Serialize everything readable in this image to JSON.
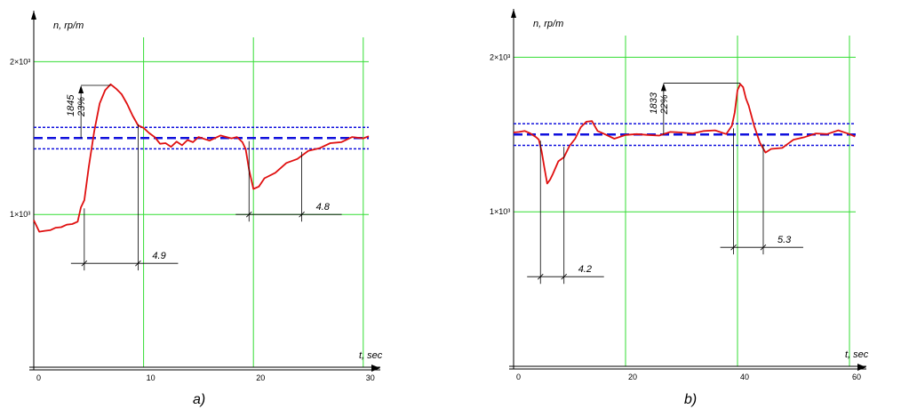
{
  "colors": {
    "grid": "#33dd33",
    "series": "#e01010",
    "band": "#1010dd",
    "axis": "#000000"
  },
  "chart_data": [
    {
      "type": "line",
      "panel_label": "a)",
      "xlabel": "t, sec",
      "ylabel": "n, rp/m",
      "xlim": [
        0,
        31
      ],
      "ylim": [
        0,
        2200
      ],
      "x_ticks": [
        0,
        10,
        20,
        30
      ],
      "x_tick_labels": [
        "0",
        "10",
        "20",
        "30"
      ],
      "y_ticks": [
        1000,
        2000
      ],
      "y_tick_labels": [
        "1×10³",
        "2×10³"
      ],
      "grid": true,
      "band": {
        "center": 1500,
        "upper": 1570,
        "lower": 1430
      },
      "series": [
        {
          "x": [
            0,
            0.5,
            1,
            1.5,
            2,
            2.5,
            3,
            3.5,
            4,
            4.3,
            4.6,
            5,
            5.5,
            6,
            6.5,
            7,
            7.5,
            8,
            8.5,
            9,
            9.5,
            10,
            10.5,
            11,
            11.5,
            12,
            12.5,
            13,
            13.5,
            14,
            14.5,
            15,
            16,
            17,
            18,
            18.5,
            19,
            19.3,
            19.6,
            20,
            20.5,
            21,
            22,
            23,
            24,
            25,
            26,
            27,
            28,
            29,
            30,
            30.5
          ],
          "y": [
            970,
            880,
            900,
            890,
            920,
            910,
            940,
            930,
            960,
            1040,
            1100,
            1300,
            1550,
            1720,
            1820,
            1845,
            1830,
            1780,
            1730,
            1640,
            1590,
            1560,
            1540,
            1500,
            1470,
            1460,
            1450,
            1470,
            1460,
            1480,
            1480,
            1500,
            1490,
            1510,
            1505,
            1500,
            1480,
            1420,
            1300,
            1160,
            1190,
            1230,
            1280,
            1330,
            1370,
            1410,
            1440,
            1460,
            1480,
            1500,
            1505,
            1505
          ]
        }
      ],
      "annotations": [
        {
          "text": "1845",
          "x": 4,
          "y": 1845
        },
        {
          "text": "23%",
          "x": 4,
          "y": 1845
        },
        {
          "text": "4.9",
          "x1": 4.6,
          "x2": 9.5,
          "y": 680
        },
        {
          "text": "4.8",
          "x1": 19.6,
          "x2": 24.4,
          "y": 1000
        }
      ]
    },
    {
      "type": "line",
      "panel_label": "b)",
      "xlabel": "t, sec",
      "ylabel": "n, rp/m",
      "xlim": [
        0,
        62
      ],
      "ylim": [
        0,
        2400
      ],
      "x_ticks": [
        0,
        20,
        40,
        60
      ],
      "x_tick_labels": [
        "0",
        "20",
        "40",
        "60"
      ],
      "y_ticks": [
        1000,
        2000
      ],
      "y_tick_labels": [
        "1×10³",
        "2×10³"
      ],
      "grid": true,
      "band": {
        "center": 1500,
        "upper": 1570,
        "lower": 1430
      },
      "series": [
        {
          "x": [
            0,
            1,
            2,
            3,
            4,
            4.5,
            5,
            5.5,
            6,
            6.5,
            7,
            8,
            9,
            10,
            11,
            12,
            13,
            14,
            15,
            16,
            18,
            20,
            22,
            24,
            26,
            28,
            30,
            32,
            34,
            36,
            38,
            39,
            39.5,
            40,
            40.5,
            41,
            41.5,
            42,
            43,
            44,
            45,
            46,
            48,
            50,
            52,
            54,
            56,
            58,
            60,
            61
          ],
          "y": [
            1520,
            1510,
            1530,
            1500,
            1490,
            1460,
            1400,
            1280,
            1190,
            1200,
            1250,
            1320,
            1360,
            1420,
            1480,
            1540,
            1590,
            1580,
            1530,
            1500,
            1480,
            1490,
            1510,
            1490,
            1500,
            1510,
            1520,
            1500,
            1530,
            1520,
            1510,
            1550,
            1650,
            1780,
            1833,
            1800,
            1740,
            1680,
            1560,
            1440,
            1390,
            1400,
            1420,
            1460,
            1490,
            1500,
            1510,
            1520,
            1510,
            1480
          ]
        }
      ],
      "annotations": [
        {
          "text": "1833",
          "x": 26,
          "y": 1833
        },
        {
          "text": "22%",
          "x": 26,
          "y": 1833
        },
        {
          "text": "4.2",
          "x1": 4.8,
          "x2": 9,
          "y": 580
        },
        {
          "text": "5.3",
          "x1": 39.3,
          "x2": 44.6,
          "y": 770
        }
      ]
    }
  ]
}
